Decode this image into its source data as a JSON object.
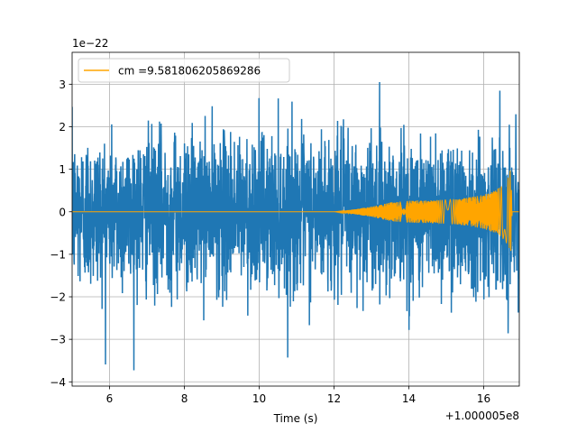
{
  "chart_data": {
    "type": "line",
    "xlabel": "Time (s)",
    "x_offset_label": "+1.000005e8",
    "y_scale_label": "1e−22",
    "xlim": [
      5.0,
      16.95
    ],
    "ylim": [
      -4.1,
      3.75
    ],
    "x_ticks": [
      6,
      8,
      10,
      12,
      14,
      16
    ],
    "x_tick_labels": [
      "6",
      "8",
      "10",
      "12",
      "14",
      "16"
    ],
    "y_ticks": [
      -4,
      -3,
      -2,
      -1,
      0,
      1,
      2,
      3
    ],
    "y_tick_labels": [
      "−4",
      "−3",
      "−2",
      "−1",
      "0",
      "1",
      "2",
      "3"
    ],
    "grid": true,
    "legend_placement": "upper left",
    "series": [
      {
        "name": "",
        "color": "#1f77b4",
        "kind": "noise_strain",
        "x_range": [
          5.0,
          16.95
        ],
        "typical_band": [
          -1.6,
          1.6
        ],
        "peak_max": 3.4,
        "peak_min": -3.75
      },
      {
        "name": "cm =9.581806205869286",
        "color": "#ffa500",
        "kind": "chirp_template",
        "x_range": [
          5.0,
          16.95
        ],
        "envelope": [
          {
            "x": 5.0,
            "y": 0.0
          },
          {
            "x": 12.0,
            "y": 0.0
          },
          {
            "x": 12.5,
            "y": 0.05
          },
          {
            "x": 13.0,
            "y": 0.12
          },
          {
            "x": 13.5,
            "y": 0.22
          },
          {
            "x": 14.0,
            "y": 0.26
          },
          {
            "x": 15.0,
            "y": 0.28
          },
          {
            "x": 15.5,
            "y": 0.32
          },
          {
            "x": 16.0,
            "y": 0.4
          },
          {
            "x": 16.3,
            "y": 0.5
          },
          {
            "x": 16.55,
            "y": 0.65
          },
          {
            "x": 16.68,
            "y": 0.85
          },
          {
            "x": 16.72,
            "y": 1.1
          },
          {
            "x": 16.76,
            "y": 0.0
          },
          {
            "x": 16.95,
            "y": 0.0
          }
        ]
      }
    ]
  }
}
